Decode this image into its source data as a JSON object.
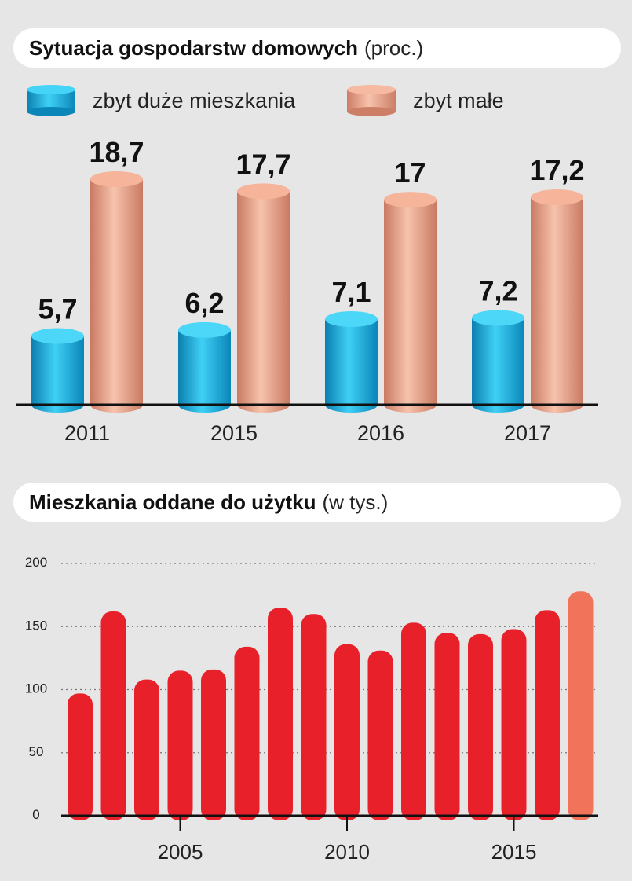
{
  "chart_data": [
    {
      "type": "bar",
      "title": "Sytuacja gospodarstw domowych",
      "unit": "(proc.)",
      "categories": [
        "2011",
        "2015",
        "2016",
        "2017"
      ],
      "series": [
        {
          "name": "zbyt duże mieszkania",
          "color": "#22b5e0",
          "values": [
            5.7,
            6.2,
            7.1,
            7.2
          ],
          "labels": [
            "5,7",
            "6,2",
            "7,1",
            "7,2"
          ]
        },
        {
          "name": "zbyt małe",
          "color": "#f0a58a",
          "values": [
            18.7,
            17.7,
            17,
            17.2
          ],
          "labels": [
            "18,7",
            "17,7",
            "17",
            "17,2"
          ]
        }
      ],
      "ylim": [
        0,
        18.7
      ]
    },
    {
      "type": "bar",
      "title": "Mieszkania oddane do użytku",
      "unit": "(w tys.)",
      "x": [
        2002,
        2003,
        2004,
        2005,
        2006,
        2007,
        2008,
        2009,
        2010,
        2011,
        2012,
        2013,
        2014,
        2015,
        2016,
        2017
      ],
      "values": [
        97,
        162,
        108,
        115,
        116,
        134,
        165,
        160,
        136,
        131,
        153,
        145,
        144,
        148,
        163,
        178
      ],
      "highlight_last_color": "#f0735a",
      "bar_color": "#e8202a",
      "ylim": [
        0,
        200
      ],
      "yticks": [
        "0",
        "50",
        "100",
        "150",
        "200"
      ],
      "xticks": [
        "2005",
        "2010",
        "2015"
      ]
    }
  ]
}
